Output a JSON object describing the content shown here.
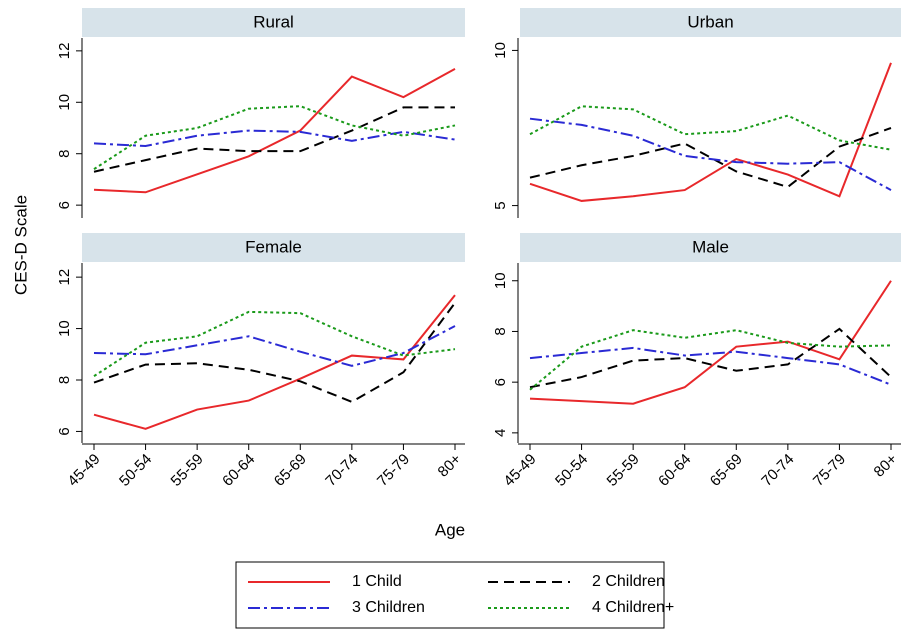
{
  "xlabel": "Age",
  "ylabel": "CES-D Scale",
  "chart_data": [
    {
      "type": "line",
      "title": "Rural",
      "categories": [
        "45-49",
        "50-54",
        "55-59",
        "60-64",
        "65-69",
        "70-74",
        "75-79",
        "80+"
      ],
      "ylim": [
        5.5,
        12.5
      ],
      "yticks": [
        6,
        8,
        10,
        12
      ],
      "series": [
        {
          "name": "1 Child",
          "color": "#e8282b",
          "dash": "solid",
          "values": [
            6.6,
            6.5,
            7.2,
            7.9,
            8.9,
            11.0,
            10.2,
            11.3
          ]
        },
        {
          "name": "2 Children",
          "color": "#000000",
          "dash": "dashed",
          "values": [
            7.3,
            7.75,
            8.2,
            8.1,
            8.1,
            8.9,
            9.8,
            9.8
          ]
        },
        {
          "name": "3 Children",
          "color": "#2a2ad4",
          "dash": "dashdot",
          "values": [
            8.4,
            8.3,
            8.7,
            8.9,
            8.85,
            8.5,
            8.85,
            8.55
          ]
        },
        {
          "name": "4 Children+",
          "color": "#1a9a1a",
          "dash": "dotted",
          "values": [
            7.4,
            8.7,
            9.0,
            9.75,
            9.85,
            9.1,
            8.7,
            9.1
          ]
        }
      ]
    },
    {
      "type": "line",
      "title": "Urban",
      "categories": [
        "45-49",
        "50-54",
        "55-59",
        "60-64",
        "65-69",
        "70-74",
        "75-79",
        "80+"
      ],
      "ylim": [
        4.6,
        10.4
      ],
      "yticks": [
        5,
        10
      ],
      "series": [
        {
          "name": "1 Child",
          "color": "#e8282b",
          "dash": "solid",
          "values": [
            5.7,
            5.15,
            5.3,
            5.5,
            6.5,
            6.0,
            5.3,
            9.6
          ]
        },
        {
          "name": "2 Children",
          "color": "#000000",
          "dash": "dashed",
          "values": [
            5.9,
            6.3,
            6.6,
            7.0,
            6.1,
            5.6,
            6.9,
            7.5
          ]
        },
        {
          "name": "3 Children",
          "color": "#2a2ad4",
          "dash": "dashdot",
          "values": [
            7.8,
            7.6,
            7.25,
            6.6,
            6.4,
            6.35,
            6.4,
            5.5
          ]
        },
        {
          "name": "4 Children+",
          "color": "#1a9a1a",
          "dash": "dotted",
          "values": [
            7.3,
            8.2,
            8.1,
            7.3,
            7.4,
            7.9,
            7.1,
            6.8
          ]
        }
      ]
    },
    {
      "type": "line",
      "title": "Female",
      "categories": [
        "45-49",
        "50-54",
        "55-59",
        "60-64",
        "65-69",
        "70-74",
        "75-79",
        "80+"
      ],
      "ylim": [
        5.55,
        12.55
      ],
      "yticks": [
        6,
        8,
        10,
        12
      ],
      "series": [
        {
          "name": "1 Child",
          "color": "#e8282b",
          "dash": "solid",
          "values": [
            6.65,
            6.1,
            6.85,
            7.2,
            8.05,
            8.95,
            8.8,
            11.3
          ]
        },
        {
          "name": "2 Children",
          "color": "#000000",
          "dash": "dashed",
          "values": [
            7.9,
            8.6,
            8.65,
            8.4,
            7.95,
            7.15,
            8.3,
            11.0
          ]
        },
        {
          "name": "3 Children",
          "color": "#2a2ad4",
          "dash": "dashdot",
          "values": [
            9.05,
            9.0,
            9.35,
            9.7,
            9.1,
            8.55,
            9.05,
            10.1
          ]
        },
        {
          "name": "4 Children+",
          "color": "#1a9a1a",
          "dash": "dotted",
          "values": [
            8.15,
            9.45,
            9.7,
            10.65,
            10.6,
            9.7,
            8.95,
            9.2
          ]
        }
      ]
    },
    {
      "type": "line",
      "title": "Male",
      "categories": [
        "45-49",
        "50-54",
        "55-59",
        "60-64",
        "65-69",
        "70-74",
        "75-79",
        "80+"
      ],
      "ylim": [
        3.6,
        10.7
      ],
      "yticks": [
        4,
        6,
        8,
        10
      ],
      "series": [
        {
          "name": "1 Child",
          "color": "#e8282b",
          "dash": "solid",
          "values": [
            5.35,
            5.25,
            5.15,
            5.8,
            7.4,
            7.6,
            6.9,
            10.0
          ]
        },
        {
          "name": "2 Children",
          "color": "#000000",
          "dash": "dashed",
          "values": [
            5.8,
            6.2,
            6.85,
            6.95,
            6.45,
            6.7,
            8.1,
            6.2
          ]
        },
        {
          "name": "3 Children",
          "color": "#2a2ad4",
          "dash": "dashdot",
          "values": [
            6.95,
            7.15,
            7.35,
            7.05,
            7.2,
            6.95,
            6.7,
            5.9
          ]
        },
        {
          "name": "4 Children+",
          "color": "#1a9a1a",
          "dash": "dotted",
          "values": [
            5.7,
            7.4,
            8.05,
            7.75,
            8.05,
            7.55,
            7.4,
            7.45
          ]
        }
      ]
    }
  ]
}
